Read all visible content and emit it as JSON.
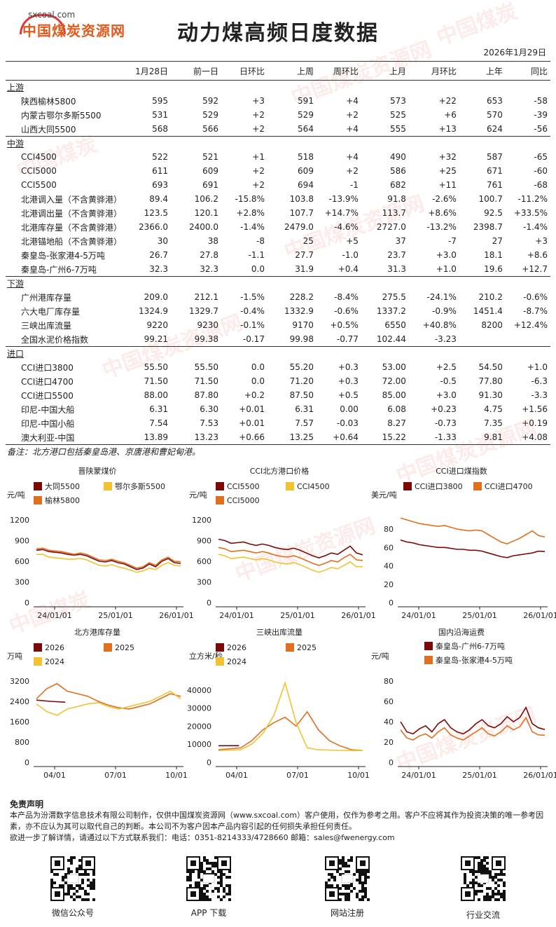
{
  "header": {
    "logo_site": "sxcoal.com",
    "logo_name": "中国煤炭资源网",
    "title": "动力煤高频日度数据",
    "date": "2026年1月29日"
  },
  "table": {
    "columns": [
      "",
      "1月28日",
      "前一日",
      "日环比",
      "上周",
      "周环比",
      "上月",
      "月环比",
      "上年",
      "同比"
    ],
    "sections": [
      {
        "name": "上游",
        "rows": [
          {
            "name": "陕西榆林5800",
            "vals": [
              "595",
              "592",
              "+3",
              "591",
              "+4",
              "573",
              "+22",
              "653",
              "-58"
            ]
          },
          {
            "name": "内蒙古鄂尔多斯5500",
            "vals": [
              "531",
              "529",
              "+2",
              "529",
              "+2",
              "525",
              "+6",
              "570",
              "-39"
            ]
          },
          {
            "name": "山西大同5500",
            "vals": [
              "568",
              "566",
              "+2",
              "564",
              "+4",
              "555",
              "+13",
              "624",
              "-56"
            ]
          }
        ]
      },
      {
        "name": "中游",
        "rows": [
          {
            "name": "CCI4500",
            "vals": [
              "522",
              "521",
              "+1",
              "518",
              "+4",
              "490",
              "+32",
              "587",
              "-65"
            ]
          },
          {
            "name": "CCI5000",
            "vals": [
              "611",
              "609",
              "+2",
              "609",
              "+2",
              "586",
              "+25",
              "671",
              "-60"
            ]
          },
          {
            "name": "CCI5500",
            "vals": [
              "693",
              "691",
              "+2",
              "694",
              "-1",
              "682",
              "+11",
              "761",
              "-68"
            ]
          },
          {
            "name": "北港调入量（不含黄骅港）",
            "vals": [
              "89.4",
              "106.2",
              "-15.8%",
              "103.8",
              "-13.9%",
              "91.8",
              "-2.6%",
              "100.7",
              "-11.2%"
            ]
          },
          {
            "name": "北港调出量（不含黄骅港）",
            "vals": [
              "123.5",
              "120.1",
              "+2.8%",
              "107.7",
              "+14.7%",
              "113.7",
              "+8.6%",
              "92.5",
              "+33.5%"
            ]
          },
          {
            "name": "北港库存量（不含黄骅港）",
            "vals": [
              "2366.0",
              "2400.0",
              "-1.4%",
              "2479.0",
              "-4.6%",
              "2727.0",
              "-13.2%",
              "2398.7",
              "-1.4%"
            ]
          },
          {
            "name": "北港锚地船（不含黄骅港）",
            "vals": [
              "30",
              "38",
              "-8",
              "25",
              "+5",
              "37",
              "-7",
              "27",
              "+3"
            ]
          },
          {
            "name": "秦皇岛-张家港4-5万吨",
            "vals": [
              "26.7",
              "27.8",
              "-1.1",
              "27.7",
              "-1.0",
              "23.7",
              "+3.0",
              "18.1",
              "+8.6"
            ]
          },
          {
            "name": "秦皇岛-广州6-7万吨",
            "vals": [
              "32.3",
              "32.3",
              "0.0",
              "31.9",
              "+0.4",
              "31.3",
              "+1.0",
              "19.6",
              "+12.7"
            ]
          }
        ]
      },
      {
        "name": "下游",
        "rows": [
          {
            "name": "广州港库存量",
            "vals": [
              "209.0",
              "212.1",
              "-1.5%",
              "228.2",
              "-8.4%",
              "275.5",
              "-24.1%",
              "210.2",
              "-0.6%"
            ]
          },
          {
            "name": "六大电厂库存量",
            "vals": [
              "1324.9",
              "1329.7",
              "-0.4%",
              "1332.9",
              "-0.6%",
              "1337.2",
              "-0.9%",
              "1451.4",
              "-8.7%"
            ]
          },
          {
            "name": "三峡出库流量",
            "vals": [
              "9220",
              "9230",
              "-0.1%",
              "9170",
              "+0.5%",
              "6550",
              "+40.8%",
              "8200",
              "+12.4%"
            ]
          },
          {
            "name": "全国水泥价格指数",
            "vals": [
              "99.21",
              "99.38",
              "-0.17",
              "99.98",
              "-0.77",
              "102.44",
              "-3.23",
              "",
              ""
            ]
          }
        ]
      },
      {
        "name": "进口",
        "rows": [
          {
            "name": "CCI进口3800",
            "vals": [
              "55.50",
              "55.50",
              "0.0",
              "55.20",
              "+0.3",
              "53.00",
              "+2.5",
              "54.50",
              "+1.0"
            ]
          },
          {
            "name": "CCI进口4700",
            "vals": [
              "71.50",
              "71.50",
              "0.0",
              "71.20",
              "+0.3",
              "72.00",
              "-0.5",
              "77.80",
              "-6.3"
            ]
          },
          {
            "name": "CCI进口5500",
            "vals": [
              "88.00",
              "87.80",
              "+0.2",
              "87.50",
              "+0.5",
              "85.00",
              "+3.0",
              "91.30",
              "-3.3"
            ]
          },
          {
            "name": "印尼-中国大船",
            "vals": [
              "6.31",
              "6.30",
              "+0.01",
              "6.31",
              "0.00",
              "6.08",
              "+0.23",
              "4.75",
              "+1.56"
            ]
          },
          {
            "name": "印尼-中国小船",
            "vals": [
              "7.54",
              "7.53",
              "+0.01",
              "7.57",
              "-0.03",
              "8.27",
              "-0.73",
              "7.35",
              "+0.19"
            ]
          },
          {
            "name": "澳大利亚-中国",
            "vals": [
              "13.89",
              "13.23",
              "+0.66",
              "13.25",
              "+0.64",
              "15.22",
              "-1.33",
              "9.81",
              "+4.08"
            ]
          }
        ]
      }
    ]
  },
  "note": "备注：北方港口包括秦皇岛港、京唐港和曹妃甸港。",
  "chart_data": [
    {
      "type": "line",
      "title": "晋陕蒙煤价",
      "ylabel": "元/吨",
      "ylim": [
        0,
        1200
      ],
      "yticks": [
        0,
        300,
        600,
        900,
        1200
      ],
      "xticks": [
        "24/01/01",
        "25/01/01",
        "26/01/01"
      ],
      "legend": "top-left",
      "series": [
        {
          "name": "大同5500",
          "color": "#7a0a0a",
          "values": [
            760,
            770,
            740,
            730,
            720,
            700,
            690,
            700,
            680,
            640,
            600,
            590,
            610,
            580,
            560,
            520,
            480,
            500,
            560,
            520,
            600,
            640,
            580,
            568
          ]
        },
        {
          "name": "鄂尔多斯5500",
          "color": "#f2c230",
          "values": [
            700,
            700,
            660,
            650,
            640,
            630,
            630,
            640,
            620,
            580,
            540,
            530,
            550,
            520,
            500,
            470,
            440,
            460,
            500,
            480,
            540,
            580,
            540,
            531
          ]
        },
        {
          "name": "榆林5800",
          "color": "#e07020",
          "values": [
            780,
            790,
            760,
            750,
            740,
            720,
            700,
            720,
            700,
            660,
            620,
            610,
            630,
            600,
            580,
            540,
            500,
            520,
            580,
            540,
            620,
            660,
            600,
            595
          ]
        }
      ]
    },
    {
      "type": "line",
      "title": "CCI北方港口价格",
      "ylabel": "元/吨",
      "ylim": [
        0,
        1200
      ],
      "yticks": [
        0,
        300,
        600,
        900,
        1200
      ],
      "xticks": [
        "24/01/01",
        "25/01/01",
        "26/01/01"
      ],
      "legend": "top-left",
      "series": [
        {
          "name": "CCI5500",
          "color": "#7a0a0a",
          "values": [
            920,
            900,
            860,
            870,
            880,
            850,
            830,
            850,
            830,
            800,
            780,
            770,
            790,
            760,
            720,
            680,
            650,
            680,
            720,
            700,
            760,
            820,
            720,
            693
          ]
        },
        {
          "name": "CCI4500",
          "color": "#f2c230",
          "values": [
            700,
            680,
            640,
            650,
            660,
            640,
            620,
            640,
            620,
            590,
            570,
            560,
            580,
            550,
            510,
            470,
            440,
            470,
            510,
            490,
            540,
            590,
            520,
            522
          ]
        },
        {
          "name": "CCI5000",
          "color": "#e07020",
          "values": [
            800,
            780,
            740,
            750,
            760,
            740,
            720,
            740,
            720,
            690,
            670,
            660,
            680,
            650,
            610,
            570,
            540,
            570,
            610,
            590,
            650,
            700,
            620,
            611
          ]
        }
      ]
    },
    {
      "type": "line",
      "title": "CCI进口煤指数",
      "ylabel": "美元/吨",
      "ylim": [
        0,
        90
      ],
      "yticks": [
        0,
        20,
        40,
        60,
        80
      ],
      "xticks": [
        "24/01/01",
        "25/01/01",
        "26/01/01"
      ],
      "legend": "top",
      "series": [
        {
          "name": "CCI进口3800",
          "color": "#7a0a0a",
          "values": [
            68,
            66,
            65,
            63,
            62,
            61,
            60,
            60,
            59,
            58,
            58,
            57,
            57,
            56,
            54,
            52,
            50,
            49,
            51,
            52,
            53,
            54,
            56,
            55.5
          ]
        },
        {
          "name": "CCI进口4700",
          "color": "#e07020",
          "values": [
            92,
            90,
            88,
            86,
            85,
            84,
            83,
            84,
            82,
            80,
            79,
            78,
            79,
            78,
            74,
            70,
            66,
            64,
            67,
            70,
            74,
            78,
            73,
            71.5
          ]
        }
      ]
    },
    {
      "type": "line",
      "title": "北方港库存量",
      "ylabel": "万吨",
      "ylim": [
        0,
        3200
      ],
      "yticks": [
        0,
        800,
        1600,
        2400,
        3200
      ],
      "xticks": [
        "04/01",
        "07/01",
        "10/01"
      ],
      "legend": "top",
      "series": [
        {
          "name": "2026",
          "color": "#7a0a0a",
          "values": [
            2450,
            2400,
            2366
          ]
        },
        {
          "name": "2025",
          "color": "#e07020",
          "values": [
            2500,
            2900,
            3100,
            2800,
            2700,
            2600,
            2400,
            2250,
            2150,
            2100,
            2200,
            2300,
            2500,
            2700,
            2600
          ]
        },
        {
          "name": "2024",
          "color": "#f2c230",
          "values": [
            2300,
            2000,
            1850,
            2100,
            2200,
            2300,
            2350,
            2200,
            2100,
            2200,
            2300,
            2400,
            2600,
            2800,
            2500
          ]
        }
      ]
    },
    {
      "type": "line",
      "title": "三峡出库流量",
      "ylabel": "立方米/秒",
      "ylim": [
        0,
        45000
      ],
      "yticks": [
        0,
        10000,
        20000,
        30000,
        40000
      ],
      "xticks": [
        "04/01",
        "07/01",
        "10/01"
      ],
      "legend": "top",
      "series": [
        {
          "name": "2026",
          "color": "#7a0a0a",
          "values": [
            9200,
            9220
          ]
        },
        {
          "name": "2025",
          "color": "#e07020",
          "values": [
            7000,
            7500,
            8000,
            12000,
            18000,
            22000,
            25000,
            20000,
            28000,
            18000,
            12000,
            9000,
            7000,
            6500
          ]
        },
        {
          "name": "2024",
          "color": "#f2c230",
          "values": [
            6500,
            6800,
            7000,
            10000,
            16000,
            26000,
            44000,
            22000,
            8000,
            7000,
            6800,
            6600,
            6500,
            6500
          ]
        }
      ]
    },
    {
      "type": "line",
      "title": "国内沿海运费",
      "ylabel": "元/吨",
      "ylim": [
        0,
        80
      ],
      "yticks": [
        0,
        20,
        40,
        60,
        80
      ],
      "xticks": [
        "24/01/01",
        "25/01/01",
        "26/01/01"
      ],
      "legend": "top-left",
      "series": [
        {
          "name": "秦皇岛-广州6-7万吨",
          "color": "#7a0a0a",
          "values": [
            40,
            30,
            28,
            33,
            36,
            30,
            38,
            42,
            34,
            30,
            28,
            32,
            38,
            42,
            36,
            34,
            38,
            45,
            40,
            44,
            54,
            38,
            34,
            32.3
          ]
        },
        {
          "name": "秦皇岛-张家港4-5万吨",
          "color": "#e07020",
          "values": [
            32,
            24,
            22,
            26,
            28,
            24,
            30,
            34,
            27,
            24,
            22,
            26,
            30,
            34,
            28,
            26,
            30,
            36,
            32,
            35,
            44,
            30,
            27,
            26.7
          ]
        }
      ]
    }
  ],
  "disclaimer": {
    "title": "免责声明",
    "lines": [
      "本产品为汾渭数字信息技术有限公司制作，仅供中国煤炭资源网（www.sxcoal.com）客户使用，仅作为参考之用。客户不应将其作为投资决策的唯一参考因素，亦不应认为其可以取代自己的判断。本公司不为客户因本产品内容引起的任何损失承担任何责任。",
      "欲进一步了解详情，请通过以下方式联系我们：电话：0351-8214333/4728660 邮箱：sales@fwenergy.com"
    ]
  },
  "footer_links": [
    "微信公众号",
    "APP 下载",
    "网站注册",
    "行业交流"
  ]
}
